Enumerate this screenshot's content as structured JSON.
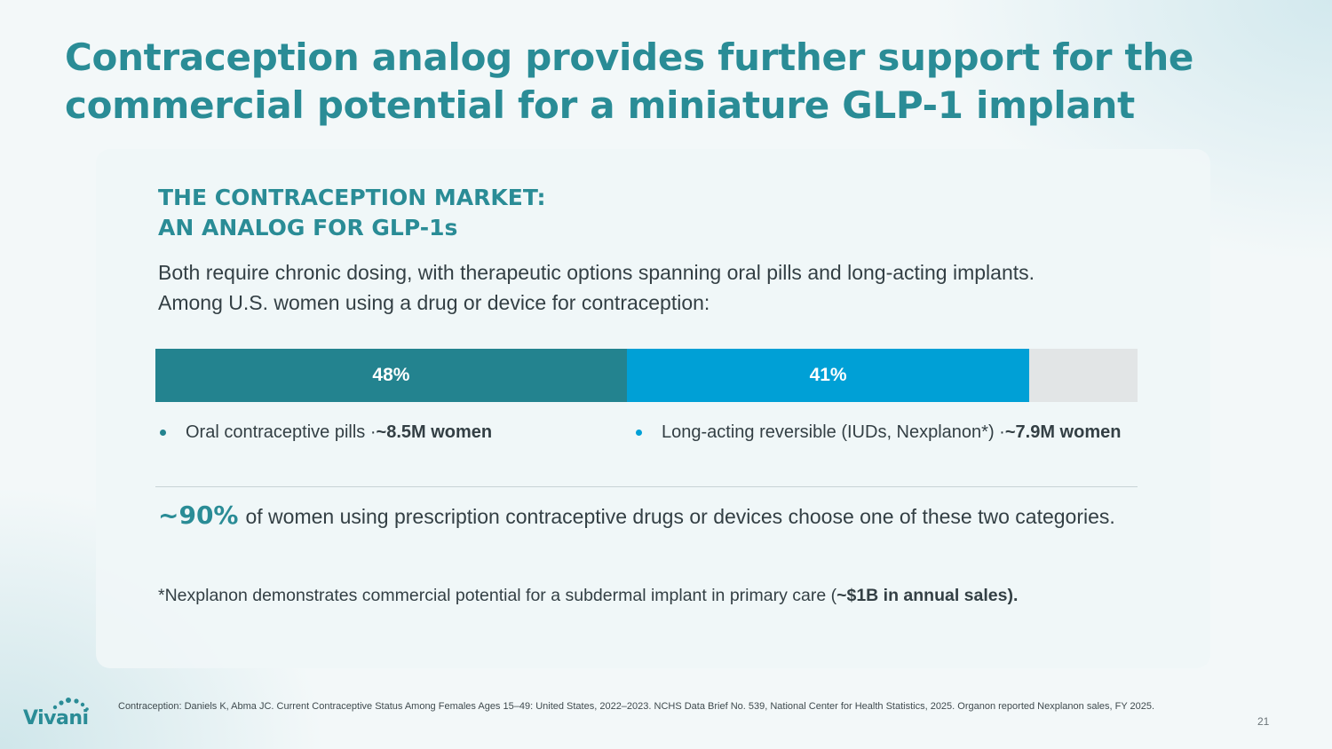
{
  "title": "Contraception analog provides further support for the commercial potential for a miniature GLP-1 implant",
  "card": {
    "heading_line1": "THE CONTRACEPTION MARKET:",
    "heading_line2": "AN ANALOG FOR GLP-1s",
    "intro": "Both require chronic dosing, with therapeutic options spanning oral pills and long-acting implants. Among U.S. women using a drug or device for contraception:",
    "bar": {
      "segments": [
        {
          "label": "48%",
          "value": 48,
          "color": "#23838f"
        },
        {
          "label": "41%",
          "value": 41,
          "color": "#00a0d6"
        }
      ],
      "remainder_color": "#e2e5e6"
    },
    "legend": [
      {
        "text": "Oral contraceptive pills · ",
        "bold": "~8.5M women",
        "color": "#23838f"
      },
      {
        "text": "Long-acting reversible (IUDs, Nexplanon*) · ",
        "bold": "~7.9M women",
        "color": "#00a0d6"
      }
    ],
    "highlight": {
      "big": "~90%",
      "text": "of women using prescription contraceptive drugs or devices choose one of these two categories."
    },
    "footnote": {
      "text": "*Nexplanon demonstrates commercial potential for a subdermal implant in primary care (",
      "bold": "~$1B in annual sales).",
      "tail": ""
    }
  },
  "logo": {
    "text": "Vivani",
    "accent": "#2a8c96"
  },
  "source": "Contraception: Daniels K, Abma JC. Current Contraceptive Status Among Females Ages 15–49: United States, 2022–2023. NCHS Data Brief No. 539, National Center for Health Statistics, 2025. Organon reported Nexplanon sales, FY 2025.",
  "page_number": "21"
}
